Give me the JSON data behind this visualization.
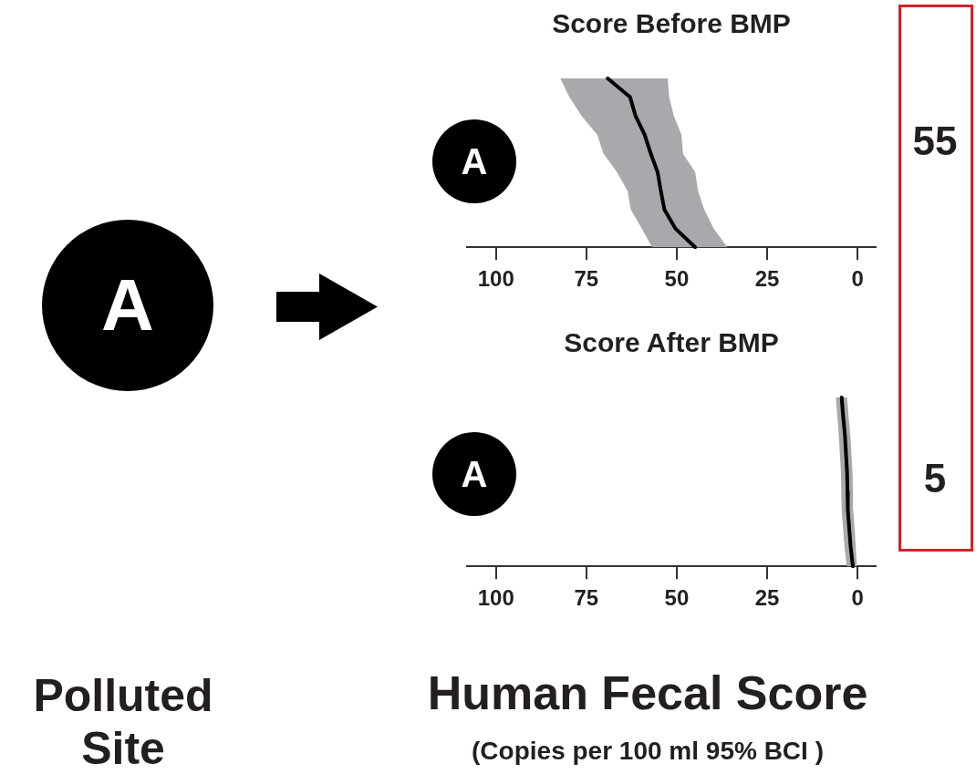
{
  "chart_data": [
    {
      "type": "line",
      "title": "Score Before BMP",
      "ylabel": "A",
      "orientation": "horizontal",
      "tick_labels": "x",
      "categories": [
        null,
        null,
        null,
        null,
        null,
        null,
        null,
        null,
        null,
        null
      ],
      "xlim": [
        108,
        -5
      ],
      "xticks": [
        100,
        75,
        50,
        25,
        0
      ],
      "annotations": [
        "A",
        "Polluted Site",
        "55"
      ],
      "series": [
        {
          "color": "#000000",
          "values": [
            69.1,
            62.9,
            61.4,
            58.9,
            57.2,
            55.3,
            54.4,
            53.4,
            50.4,
            44.9
          ],
          "lower": [
            52.5,
            52.1,
            50.8,
            48.7,
            48.3,
            44.9,
            44.1,
            42.4,
            39.8,
            36.0
          ],
          "upper": [
            82.2,
            79.7,
            76.3,
            72.0,
            70.3,
            66.5,
            63.6,
            62.7,
            59.7,
            56.8
          ]
        }
      ]
    },
    {
      "type": "line",
      "title": "Score After BMP",
      "ylabel": "A",
      "xlabel": "Human Fecal Score",
      "orientation": "horizontal",
      "tick_labels": "x",
      "categories": [
        null,
        null,
        null,
        null,
        null,
        null,
        null,
        null,
        null,
        null
      ],
      "xlim": [
        108,
        -5
      ],
      "xticks": [
        100,
        75,
        50,
        25,
        0
      ],
      "annotations": [
        "5",
        "(Copies per 100 ml 95% BCI )"
      ],
      "series": [
        {
          "color": "#000000",
          "values": [
            4.4,
            4.0,
            3.5,
            3.2,
            2.9,
            2.8,
            2.7,
            2.3,
            1.9,
            1.3
          ],
          "lower": [
            2.9,
            2.5,
            2.0,
            1.7,
            1.4,
            1.3,
            1.2,
            0.8,
            0.5,
            0.2
          ],
          "upper": [
            6.0,
            5.6,
            5.2,
            4.9,
            4.6,
            4.5,
            4.4,
            4.0,
            3.6,
            3.0
          ]
        }
      ]
    }
  ]
}
